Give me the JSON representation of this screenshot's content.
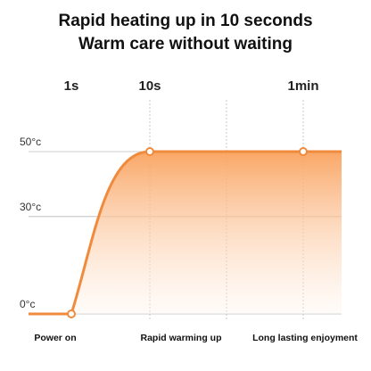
{
  "chart_data": {
    "type": "line",
    "title": "Rapid heating up in 10 seconds",
    "subtitle": "Warm care without waiting",
    "x_top_labels": [
      "1s",
      "10s",
      "1min"
    ],
    "x_bottom_labels": [
      "Power on",
      "Rapid warming up",
      "Long lasting enjoyment"
    ],
    "y_ticks": [
      {
        "label": "0°c",
        "value": 0
      },
      {
        "label": "30°c",
        "value": 30
      },
      {
        "label": "50°c",
        "value": 50
      }
    ],
    "ylim": [
      0,
      50
    ],
    "grid": true,
    "series": [
      {
        "points": [
          {
            "x": "Power on",
            "y": 0
          },
          {
            "x": "Rapid warming up",
            "y": 50
          },
          {
            "x": "Long lasting enjoyment",
            "y": 50
          }
        ]
      }
    ],
    "colors": {
      "line": "#f08a3c",
      "fill_top": "#f9a25e",
      "fill_bottom": "#fff4ec",
      "grid": "#bbbbbb",
      "marker_fill": "#ffffff"
    }
  }
}
